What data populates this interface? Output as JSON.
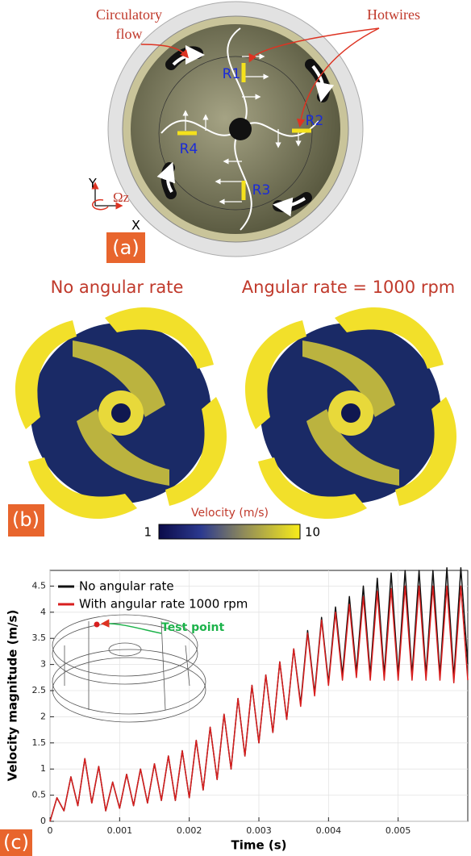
{
  "panel_a": {
    "label": "(a)",
    "annotations": [
      "Circulatory",
      "flow",
      "Hotwires"
    ],
    "sensors": [
      "R1",
      "R2",
      "R3",
      "R4"
    ],
    "axes": [
      "Y",
      "X",
      "Ωz"
    ]
  },
  "panel_b": {
    "label": "(b)",
    "titles": [
      "No angular rate",
      "Angular rate = 1000 rpm"
    ],
    "colorbar": {
      "title": "Velocity (m/s)",
      "min": 1,
      "max": 10
    }
  },
  "panel_c": {
    "label": "(c)",
    "annotation": "Test point"
  },
  "chart_data": {
    "type": "line",
    "xlabel": "Time (s)",
    "ylabel": "Velocity magnitude (m/s)",
    "x": [
      0,
      0.0001,
      0.0002,
      0.0003,
      0.0004,
      0.0005,
      0.0006,
      0.0007,
      0.0008,
      0.0009,
      0.001,
      0.0011,
      0.0012,
      0.0013,
      0.0014,
      0.0015,
      0.0016,
      0.0017,
      0.0018,
      0.0019,
      0.002,
      0.0021,
      0.0022,
      0.0023,
      0.0024,
      0.0025,
      0.0026,
      0.0027,
      0.0028,
      0.0029,
      0.003,
      0.0031,
      0.0032,
      0.0033,
      0.0034,
      0.0035,
      0.0036,
      0.0037,
      0.0038,
      0.0039,
      0.004,
      0.0041,
      0.0042,
      0.0043,
      0.0044,
      0.0045,
      0.0046,
      0.0047,
      0.0048,
      0.0049,
      0.005,
      0.0051,
      0.0052,
      0.0053,
      0.0054,
      0.0055,
      0.0056,
      0.0057,
      0.0058,
      0.0059,
      0.006
    ],
    "series": [
      {
        "name": "No angular rate",
        "color": "#111111",
        "values": [
          0,
          0.45,
          0.2,
          0.85,
          0.3,
          1.2,
          0.35,
          1.05,
          0.2,
          0.75,
          0.25,
          0.9,
          0.3,
          1.0,
          0.35,
          1.1,
          0.4,
          1.25,
          0.4,
          1.35,
          0.45,
          1.55,
          0.6,
          1.8,
          0.8,
          2.05,
          1.0,
          2.35,
          1.25,
          2.6,
          1.5,
          2.8,
          1.7,
          3.05,
          1.95,
          3.3,
          2.25,
          3.65,
          2.45,
          3.9,
          2.65,
          4.1,
          2.8,
          4.3,
          2.85,
          4.5,
          2.8,
          4.65,
          2.8,
          4.75,
          2.8,
          4.8,
          2.8,
          4.8,
          2.8,
          4.8,
          2.8,
          4.85,
          2.75,
          4.85,
          3.0
        ]
      },
      {
        "name": "With angular rate 1000 rpm",
        "color": "#d81e1e",
        "values": [
          0,
          0.45,
          0.2,
          0.85,
          0.3,
          1.2,
          0.35,
          1.05,
          0.2,
          0.75,
          0.25,
          0.9,
          0.3,
          1.0,
          0.35,
          1.1,
          0.4,
          1.25,
          0.4,
          1.35,
          0.45,
          1.55,
          0.6,
          1.8,
          0.8,
          2.05,
          1.0,
          2.35,
          1.25,
          2.6,
          1.5,
          2.8,
          1.7,
          3.05,
          1.95,
          3.3,
          2.2,
          3.6,
          2.4,
          3.85,
          2.6,
          4.0,
          2.7,
          4.15,
          2.75,
          4.3,
          2.7,
          4.4,
          2.7,
          4.45,
          2.7,
          4.5,
          2.7,
          4.5,
          2.7,
          4.5,
          2.7,
          4.5,
          2.65,
          4.5,
          2.7
        ]
      }
    ],
    "xlim": [
      0,
      0.006
    ],
    "xticks": [
      0,
      0.001,
      0.002,
      0.003,
      0.004,
      0.005
    ],
    "ylim": [
      0,
      4.8
    ],
    "yticks": [
      0,
      0.5,
      1,
      1.5,
      2,
      2.5,
      3,
      3.5,
      4,
      4.5
    ],
    "grid": true,
    "legend": "upper left"
  }
}
